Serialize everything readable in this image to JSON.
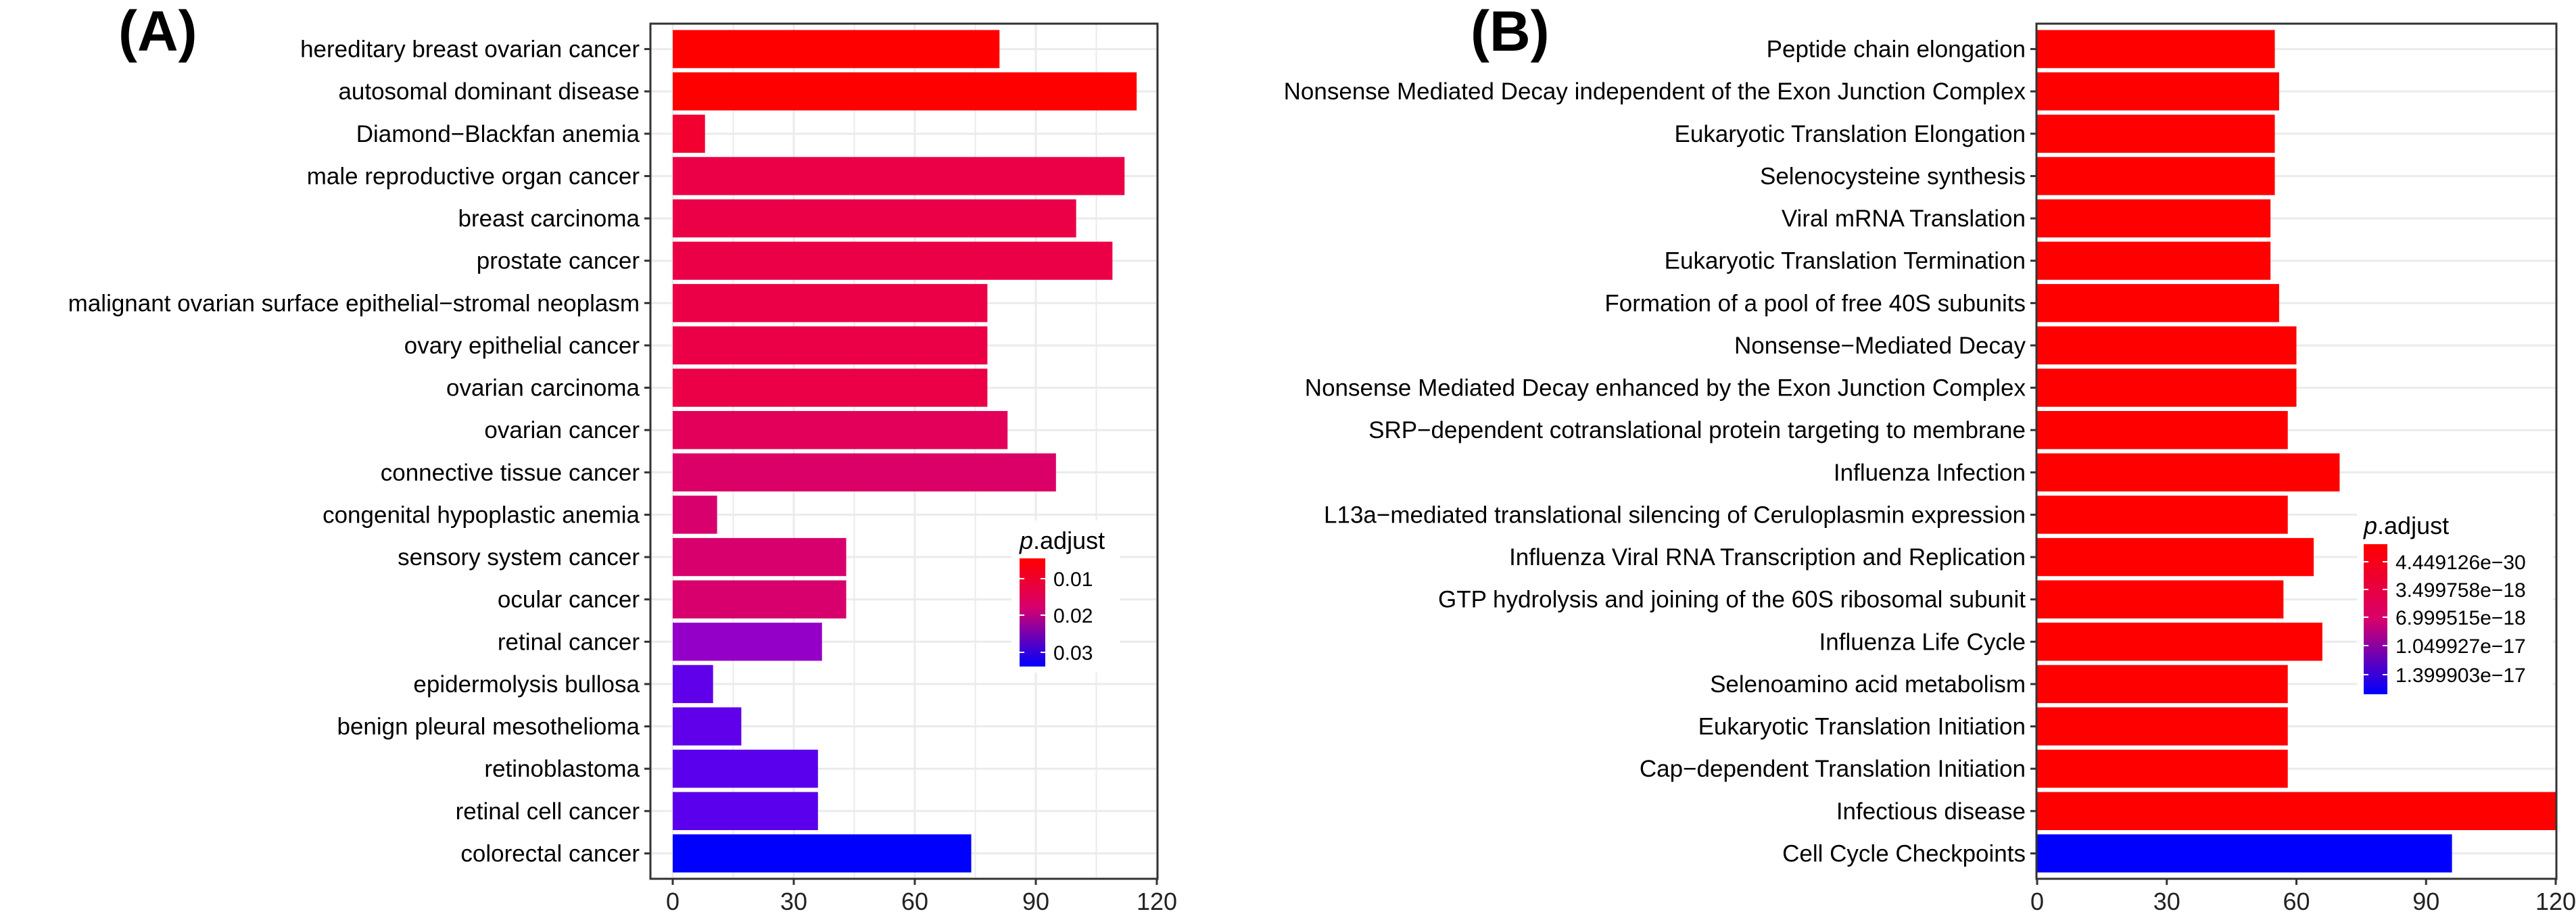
{
  "chart_data": [
    {
      "panel_label": "(A)",
      "type": "bar",
      "orientation": "horizontal",
      "xlim": [
        0,
        120
      ],
      "xticks": [
        0,
        30,
        60,
        90,
        120
      ],
      "grid": true,
      "legend": {
        "title_italic": "p",
        "title_rest": ".adjust",
        "labels": [
          "0.01",
          "0.02",
          "0.03"
        ],
        "gradient": [
          "#FF0000",
          "#0000FF"
        ],
        "placement": "inside-right"
      },
      "categories": [
        "hereditary breast ovarian cancer",
        "autosomal dominant disease",
        "Diamond−Blackfan anemia",
        "male reproductive organ cancer",
        "breast carcinoma",
        "prostate cancer",
        "malignant ovarian surface epithelial−stromal neoplasm",
        "ovary epithelial cancer",
        "ovarian carcinoma",
        "ovarian cancer",
        "connective tissue cancer",
        "congenital hypoplastic anemia",
        "sensory system cancer",
        "ocular cancer",
        "retinal cancer",
        "epidermolysis bullosa",
        "benign pleural mesothelioma",
        "retinoblastoma",
        "retinal cell cancer",
        "colorectal cancer"
      ],
      "values": [
        81,
        115,
        8,
        112,
        100,
        109,
        78,
        78,
        78,
        83,
        95,
        11,
        43,
        43,
        37,
        10,
        17,
        36,
        36,
        74
      ],
      "colors": [
        "#FF0000",
        "#FF0000",
        "#F2002F",
        "#EB0048",
        "#EB0048",
        "#EB0048",
        "#EB0048",
        "#EB0048",
        "#EB0048",
        "#E2005A",
        "#DB0068",
        "#D8006C",
        "#D8006C",
        "#D8006C",
        "#9400C8",
        "#6000EB",
        "#6000EB",
        "#5A00EC",
        "#5A00EC",
        "#0000FF"
      ]
    },
    {
      "panel_label": "(B)",
      "type": "bar",
      "orientation": "horizontal",
      "xlim": [
        0,
        120
      ],
      "xticks": [
        0,
        30,
        60,
        90,
        120
      ],
      "grid": true,
      "legend": {
        "title_italic": "p",
        "title_rest": ".adjust",
        "labels": [
          "4.449126e−30",
          "3.499758e−18",
          "6.999515e−18",
          "1.049927e−17",
          "1.399903e−17"
        ],
        "gradient": [
          "#FF0000",
          "#0000FF"
        ],
        "placement": "inside-right"
      },
      "categories": [
        "Peptide chain elongation",
        "Nonsense Mediated Decay independent of the Exon Junction Complex",
        "Eukaryotic Translation Elongation",
        "Selenocysteine synthesis",
        "Viral mRNA Translation",
        "Eukaryotic Translation Termination",
        "Formation of a pool of free 40S subunits",
        "Nonsense−Mediated Decay",
        "Nonsense Mediated Decay enhanced by the Exon Junction Complex",
        "SRP−dependent cotranslational protein targeting to membrane",
        "Influenza Infection",
        "L13a−mediated translational silencing of Ceruloplasmin expression",
        "Influenza Viral RNA Transcription and Replication",
        "GTP hydrolysis and joining of the 60S ribosomal subunit",
        "Influenza Life Cycle",
        "Selenoamino acid metabolism",
        "Eukaryotic Translation Initiation",
        "Cap−dependent Translation Initiation",
        "Infectious disease",
        "Cell Cycle Checkpoints"
      ],
      "values": [
        55,
        56,
        55,
        55,
        54,
        54,
        56,
        60,
        60,
        58,
        70,
        58,
        64,
        57,
        66,
        58,
        58,
        58,
        120,
        96
      ],
      "colors": [
        "#FF0000",
        "#FF0000",
        "#FF0000",
        "#FF0000",
        "#FF0000",
        "#FF0000",
        "#FF0000",
        "#FF0000",
        "#FF0000",
        "#FF0000",
        "#FF0000",
        "#FF0000",
        "#FF0000",
        "#FF0000",
        "#FF0000",
        "#FF0000",
        "#FF0000",
        "#FF0000",
        "#FF0000",
        "#0000FF"
      ]
    }
  ]
}
